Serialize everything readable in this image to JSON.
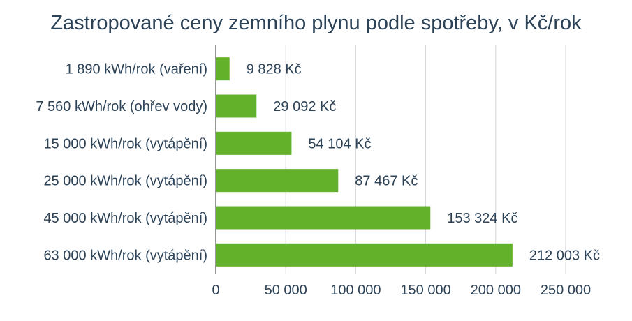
{
  "chart_data": {
    "type": "bar",
    "orientation": "horizontal",
    "title": "Zastropované ceny zemního plynu podle spotřeby, v Kč/rok",
    "categories": [
      "1 890 kWh/rok (vaření)",
      "7 560 kWh/rok (ohřev vody)",
      "15 000 kWh/rok (vytápění)",
      "25 000 kWh/rok (vytápění)",
      "45 000 kWh/rok (vytápění)",
      "63 000 kWh/rok (vytápění)"
    ],
    "values": [
      9828,
      29092,
      54104,
      87467,
      153324,
      212003
    ],
    "value_labels": [
      "9 828 Kč",
      "29 092 Kč",
      "54 104 Kč",
      "87 467 Kč",
      "153 324 Kč",
      "212 003 Kč"
    ],
    "xlim": [
      0,
      250000
    ],
    "x_ticks": [
      0,
      50000,
      100000,
      150000,
      200000,
      250000
    ],
    "x_tick_labels": [
      "0",
      "50 000",
      "100 000",
      "150 000",
      "200 000",
      "250 000"
    ],
    "xlabel": "",
    "ylabel": "",
    "grid": "vertical",
    "bar_color": "#63b02a",
    "grid_color": "#d6d6d6",
    "text_color": "#2c4257"
  }
}
